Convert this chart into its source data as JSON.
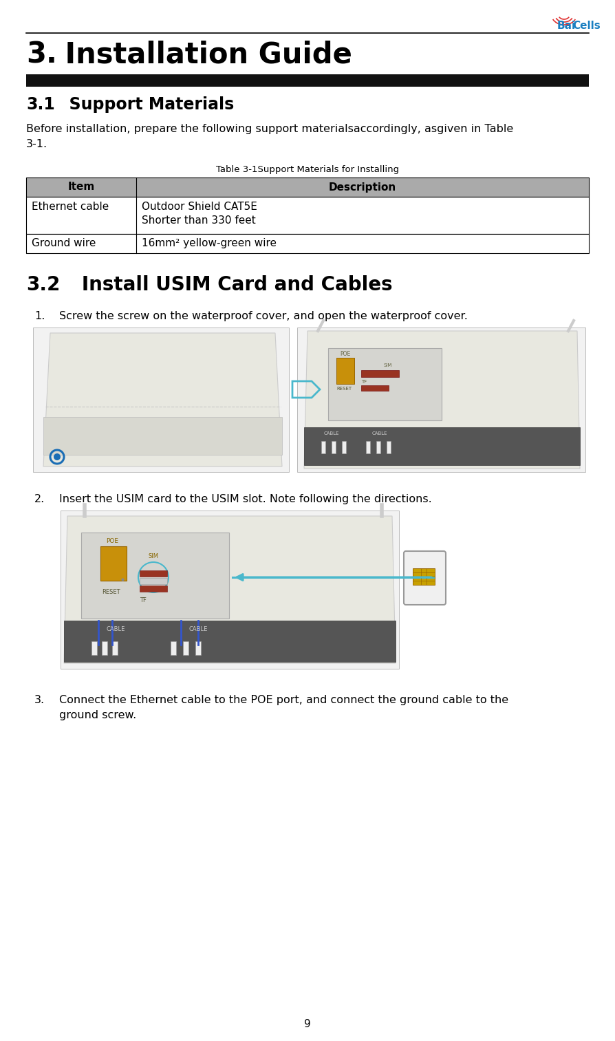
{
  "page_num": "9",
  "chapter_num": "3.",
  "chapter_title": " Installation Guide",
  "section1_num": "3.1",
  "section1_title": "  Support Materials",
  "section1_body_line1": "Before installation, prepare the following support materialsaccordingly, asgiven in Table",
  "section1_body_line2": "3-1.",
  "table_caption": "Table 3-1Support Materials for Installing",
  "table_header": [
    "Item",
    "Description"
  ],
  "table_rows": [
    [
      "Ethernet cable",
      "Outdoor Shield CAT5E\nShorter than 330 feet"
    ],
    [
      "Ground wire",
      "16mm² yellow-green wire"
    ]
  ],
  "table_header_bg": "#aaaaaa",
  "table_row_bg": "#ffffff",
  "table_border": "#000000",
  "section2_num": "3.2",
  "section2_title": "   Install USIM Card and Cables",
  "step1_num": "1.",
  "step1_text": "Screw the screw on the waterproof cover, and open the waterproof cover.",
  "step2_num": "2.",
  "step2_text": "Insert the USIM card to the USIM slot. Note following the directions.",
  "step3_num": "3.",
  "step3_text_line1": "Connect the Ethernet cable to the POE port, and connect the ground cable to the",
  "step3_text_line2": "ground screw.",
  "bg_color": "#ffffff",
  "text_color": "#000000",
  "header_bar_color": "#111111",
  "top_line_color": "#000000",
  "logo_bai_color": "#1a7fc1",
  "logo_cells_color": "#1a7fc1",
  "logo_signal_color": "#e03030",
  "arrow_color": "#4ab8cc",
  "circle_color": "#1a6db5"
}
